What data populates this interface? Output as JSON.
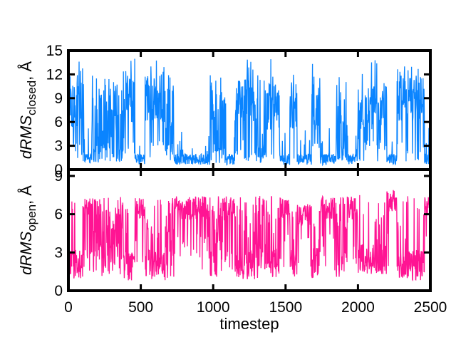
{
  "chart_data": [
    {
      "type": "line",
      "panel": "top",
      "ylabel": {
        "main": "dRMS",
        "sub": "closed",
        "unit": ", Å"
      },
      "xlim": [
        0,
        2500
      ],
      "ylim": [
        0,
        15
      ],
      "yticks": [
        "0",
        "3",
        "6",
        "9",
        "12",
        "15"
      ],
      "ytick_values": [
        0,
        3,
        6,
        9,
        12,
        15
      ],
      "grid": false,
      "series": [
        {
          "color": "#0a84ff",
          "description": "switching between closed state (~0.5-2 Å) and open state (~6-14 Å)",
          "segments": [
            {
              "x": [
                0,
                110
              ],
              "state": "high",
              "level": 8
            },
            {
              "x": [
                110,
                160
              ],
              "state": "low",
              "level": 1.2
            },
            {
              "x": [
                160,
                380
              ],
              "state": "mixed",
              "level": 6
            },
            {
              "x": [
                380,
                460
              ],
              "state": "high",
              "level": 9
            },
            {
              "x": [
                460,
                530
              ],
              "state": "low",
              "level": 1.5
            },
            {
              "x": [
                530,
                670
              ],
              "state": "high",
              "level": 9
            },
            {
              "x": [
                670,
                730
              ],
              "state": "mixed",
              "level": 4
            },
            {
              "x": [
                730,
                980
              ],
              "state": "low",
              "level": 1.2
            },
            {
              "x": [
                980,
                1090
              ],
              "state": "mixed",
              "level": 4
            },
            {
              "x": [
                1090,
                1150
              ],
              "state": "low",
              "level": 1.5
            },
            {
              "x": [
                1150,
                1290
              ],
              "state": "high",
              "level": 9
            },
            {
              "x": [
                1290,
                1370
              ],
              "state": "mixed",
              "level": 5
            },
            {
              "x": [
                1370,
                1460
              ],
              "state": "high",
              "level": 8
            },
            {
              "x": [
                1460,
                1530
              ],
              "state": "low",
              "level": 1.5
            },
            {
              "x": [
                1530,
                1580
              ],
              "state": "high",
              "level": 8
            },
            {
              "x": [
                1580,
                1680
              ],
              "state": "low",
              "level": 2
            },
            {
              "x": [
                1680,
                1740
              ],
              "state": "high",
              "level": 8
            },
            {
              "x": [
                1740,
                1850
              ],
              "state": "low",
              "level": 1.2
            },
            {
              "x": [
                1850,
                1930
              ],
              "state": "mixed",
              "level": 5
            },
            {
              "x": [
                1930,
                2000
              ],
              "state": "low",
              "level": 1.5
            },
            {
              "x": [
                2000,
                2200
              ],
              "state": "high",
              "level": 8
            },
            {
              "x": [
                2200,
                2270
              ],
              "state": "low",
              "level": 1.2
            },
            {
              "x": [
                2270,
                2460
              ],
              "state": "high",
              "level": 9
            },
            {
              "x": [
                2460,
                2500
              ],
              "state": "low",
              "level": 1.5
            }
          ]
        }
      ]
    },
    {
      "type": "line",
      "panel": "bottom",
      "xlabel": "timestep",
      "ylabel": {
        "main": "dRMS",
        "sub": "open",
        "unit": ", Å"
      },
      "xlim": [
        0,
        2500
      ],
      "ylim": [
        0,
        9.5
      ],
      "xticks": [
        "0",
        "500",
        "1000",
        "1500",
        "2000",
        "2500"
      ],
      "xtick_values": [
        0,
        500,
        1000,
        1500,
        2000,
        2500
      ],
      "yticks": [
        "0",
        "3",
        "6",
        "9"
      ],
      "ytick_values": [
        0,
        3,
        6,
        9
      ],
      "grid": false,
      "series": [
        {
          "color": "#ff1493",
          "description": "complementary switching between open state (~1-3 Å) and closed state (~5-8 Å)",
          "segments": [
            {
              "x": [
                0,
                110
              ],
              "state": "low",
              "level": 2
            },
            {
              "x": [
                110,
                160
              ],
              "state": "high",
              "level": 6.5
            },
            {
              "x": [
                160,
                380
              ],
              "state": "mixed",
              "level": 3.5
            },
            {
              "x": [
                380,
                460
              ],
              "state": "low",
              "level": 2
            },
            {
              "x": [
                460,
                530
              ],
              "state": "high",
              "level": 6.5
            },
            {
              "x": [
                530,
                670
              ],
              "state": "low",
              "level": 2
            },
            {
              "x": [
                670,
                730
              ],
              "state": "mixed",
              "level": 4
            },
            {
              "x": [
                730,
                980
              ],
              "state": "high",
              "level": 6.5
            },
            {
              "x": [
                980,
                1090
              ],
              "state": "mixed",
              "level": 4
            },
            {
              "x": [
                1090,
                1150
              ],
              "state": "high",
              "level": 6.5
            },
            {
              "x": [
                1150,
                1290
              ],
              "state": "low",
              "level": 2
            },
            {
              "x": [
                1290,
                1370
              ],
              "state": "mixed",
              "level": 4
            },
            {
              "x": [
                1370,
                1460
              ],
              "state": "low",
              "level": 2.2
            },
            {
              "x": [
                1460,
                1530
              ],
              "state": "high",
              "level": 6.5
            },
            {
              "x": [
                1530,
                1580
              ],
              "state": "low",
              "level": 2.2
            },
            {
              "x": [
                1580,
                1680
              ],
              "state": "high",
              "level": 6
            },
            {
              "x": [
                1680,
                1740
              ],
              "state": "low",
              "level": 2.2
            },
            {
              "x": [
                1740,
                1850
              ],
              "state": "high",
              "level": 6.5
            },
            {
              "x": [
                1850,
                1930
              ],
              "state": "mixed",
              "level": 4
            },
            {
              "x": [
                1930,
                2000
              ],
              "state": "high",
              "level": 6.5
            },
            {
              "x": [
                2000,
                2200
              ],
              "state": "low",
              "level": 2.5
            },
            {
              "x": [
                2200,
                2270
              ],
              "state": "high",
              "level": 7
            },
            {
              "x": [
                2270,
                2460
              ],
              "state": "low",
              "level": 2
            },
            {
              "x": [
                2460,
                2500
              ],
              "state": "high",
              "level": 6.5
            }
          ]
        }
      ]
    }
  ]
}
